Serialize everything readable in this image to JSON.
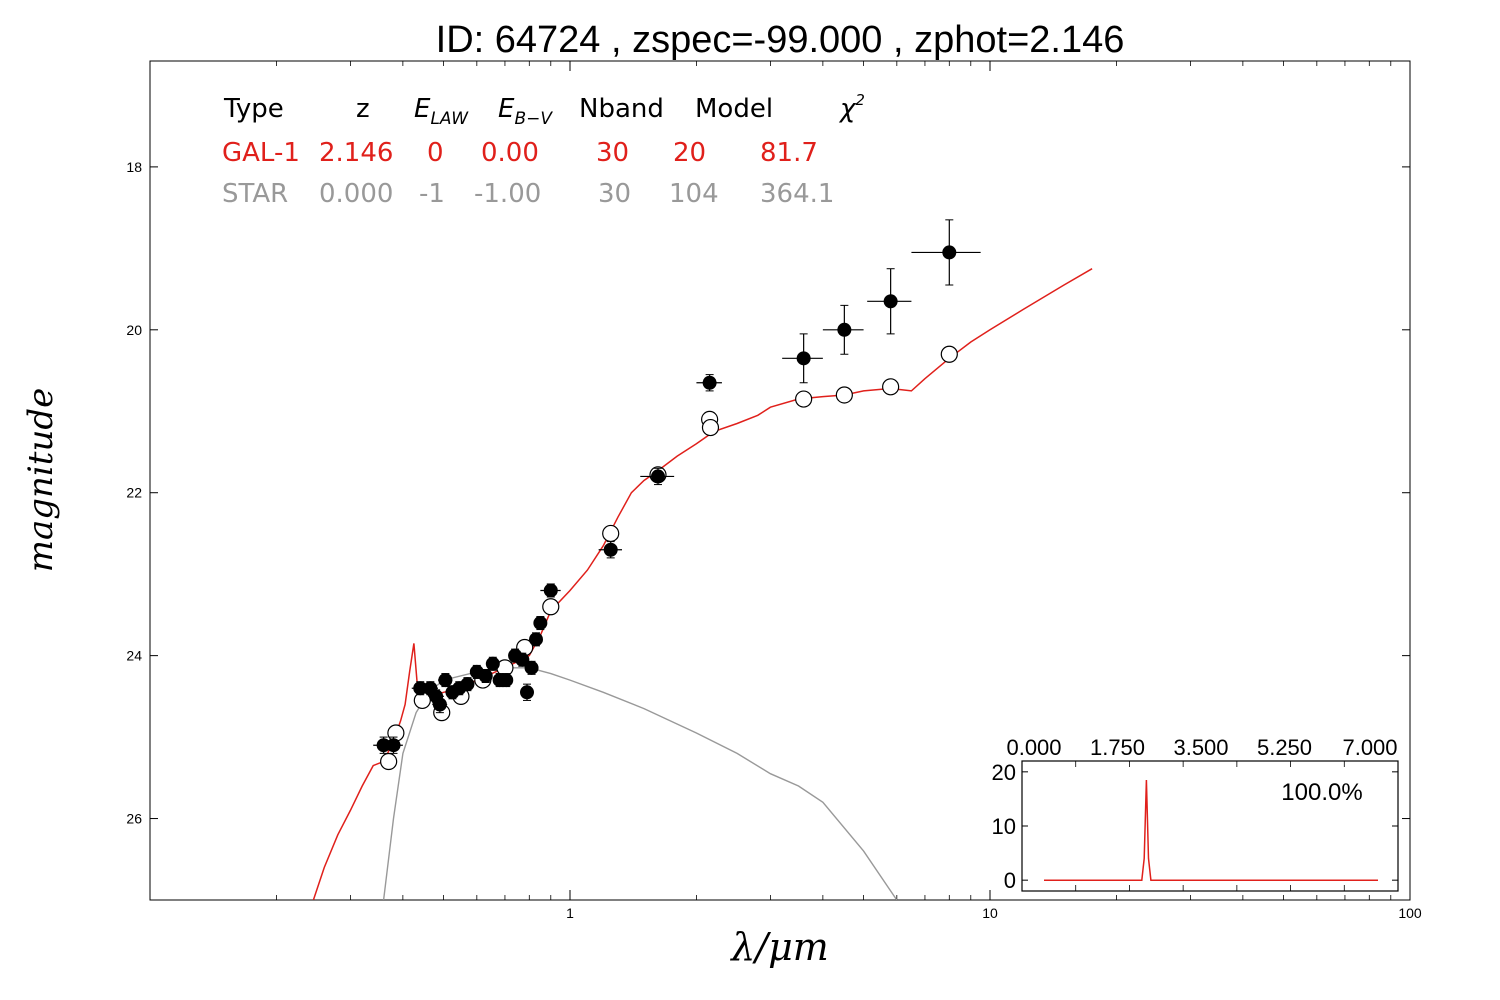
{
  "title": "ID:  64724 , zspec=-99.000 , zphot=2.146",
  "colors": {
    "galaxy": "#e0201b",
    "star": "#999999",
    "axis": "#000000",
    "marker_fill_obs": "#000000",
    "marker_fill_model": "#ffffff"
  },
  "fit_table": {
    "headers": [
      "Type",
      "z",
      "E_LAW",
      "E_B−V",
      "Nband",
      "Model",
      "χ²"
    ],
    "header_rendered": {
      "type": "Type",
      "z": "z",
      "elaw_base": "E",
      "elaw_sub": "LAW",
      "ebv_base": "E",
      "ebv_sub": "B−V",
      "nband": "Nband",
      "model": "Model",
      "chi_base": "χ",
      "chi_sup": "2"
    },
    "rows": [
      {
        "type": "GAL-1",
        "z": "2.146",
        "elaw": "0",
        "ebv": "0.00",
        "nband": "30",
        "model": "20",
        "chi2": "81.7",
        "color": "#e0201b"
      },
      {
        "type": "STAR",
        "z": "0.000",
        "elaw": "-1",
        "ebv": "-1.00",
        "nband": "30",
        "model": "104",
        "chi2": "364.1",
        "color": "#999999"
      }
    ]
  },
  "chart_data": [
    {
      "type": "scatter",
      "xlabel": "λ/μm",
      "ylabel": "magnitude",
      "xscale": "log",
      "xlim": [
        0.1,
        100
      ],
      "ylim": [
        27.0,
        16.7
      ],
      "y_inverted": true,
      "x_ticks": [
        1,
        10,
        100
      ],
      "x_tick_labels": [
        "1",
        "10",
        "100"
      ],
      "y_ticks": [
        18,
        20,
        22,
        24,
        26
      ],
      "y_tick_labels": [
        "18",
        "20",
        "22",
        "24",
        "26"
      ],
      "grid": false,
      "observed": {
        "name": "observed",
        "points": [
          {
            "x": 0.36,
            "y": 25.1,
            "yerr": 0.1,
            "xerr": 0.02
          },
          {
            "x": 0.38,
            "y": 25.1,
            "yerr": 0.1,
            "xerr": 0.02
          },
          {
            "x": 0.44,
            "y": 24.4,
            "yerr": 0.08,
            "xerr": 0.02
          },
          {
            "x": 0.465,
            "y": 24.4,
            "yerr": 0.08,
            "xerr": 0.02
          },
          {
            "x": 0.48,
            "y": 24.5,
            "yerr": 0.08,
            "xerr": 0.02
          },
          {
            "x": 0.49,
            "y": 24.6,
            "yerr": 0.1,
            "xerr": 0.02
          },
          {
            "x": 0.505,
            "y": 24.3,
            "yerr": 0.08,
            "xerr": 0.02
          },
          {
            "x": 0.525,
            "y": 24.45,
            "yerr": 0.08,
            "xerr": 0.02
          },
          {
            "x": 0.545,
            "y": 24.4,
            "yerr": 0.08,
            "xerr": 0.02
          },
          {
            "x": 0.57,
            "y": 24.35,
            "yerr": 0.08,
            "xerr": 0.02
          },
          {
            "x": 0.6,
            "y": 24.2,
            "yerr": 0.08,
            "xerr": 0.02
          },
          {
            "x": 0.63,
            "y": 24.25,
            "yerr": 0.08,
            "xerr": 0.02
          },
          {
            "x": 0.655,
            "y": 24.1,
            "yerr": 0.08,
            "xerr": 0.02
          },
          {
            "x": 0.68,
            "y": 24.3,
            "yerr": 0.08,
            "xerr": 0.02
          },
          {
            "x": 0.705,
            "y": 24.3,
            "yerr": 0.08,
            "xerr": 0.02
          },
          {
            "x": 0.74,
            "y": 24.0,
            "yerr": 0.08,
            "xerr": 0.02
          },
          {
            "x": 0.77,
            "y": 24.05,
            "yerr": 0.08,
            "xerr": 0.02
          },
          {
            "x": 0.79,
            "y": 24.45,
            "yerr": 0.1,
            "xerr": 0.02
          },
          {
            "x": 0.81,
            "y": 24.15,
            "yerr": 0.08,
            "xerr": 0.02
          },
          {
            "x": 0.83,
            "y": 23.8,
            "yerr": 0.08,
            "xerr": 0.03
          },
          {
            "x": 0.85,
            "y": 23.6,
            "yerr": 0.08,
            "xerr": 0.03
          },
          {
            "x": 0.9,
            "y": 23.2,
            "yerr": 0.08,
            "xerr": 0.05
          },
          {
            "x": 1.25,
            "y": 22.7,
            "yerr": 0.1,
            "xerr": 0.08
          },
          {
            "x": 1.62,
            "y": 21.8,
            "yerr": 0.1,
            "xerr": 0.15
          },
          {
            "x": 2.15,
            "y": 20.65,
            "yerr": 0.1,
            "xerr": 0.15
          },
          {
            "x": 3.6,
            "y": 20.35,
            "yerr": 0.3,
            "xerr": 0.4
          },
          {
            "x": 4.5,
            "y": 20.0,
            "yerr": 0.3,
            "xerr": 0.5
          },
          {
            "x": 5.8,
            "y": 19.65,
            "yerr": 0.4,
            "xerr": 0.7
          },
          {
            "x": 8.0,
            "y": 19.05,
            "yerr": 0.4,
            "xerr": 1.5
          }
        ]
      },
      "model_photometry": {
        "name": "model",
        "points": [
          {
            "x": 0.37,
            "y": 25.3
          },
          {
            "x": 0.385,
            "y": 24.95
          },
          {
            "x": 0.445,
            "y": 24.55
          },
          {
            "x": 0.495,
            "y": 24.7
          },
          {
            "x": 0.55,
            "y": 24.5
          },
          {
            "x": 0.62,
            "y": 24.3
          },
          {
            "x": 0.7,
            "y": 24.15
          },
          {
            "x": 0.78,
            "y": 23.9
          },
          {
            "x": 0.9,
            "y": 23.4
          },
          {
            "x": 1.25,
            "y": 22.5
          },
          {
            "x": 1.62,
            "y": 21.78
          },
          {
            "x": 2.15,
            "y": 21.1
          },
          {
            "x": 2.16,
            "y": 21.2
          },
          {
            "x": 3.6,
            "y": 20.85
          },
          {
            "x": 4.5,
            "y": 20.8
          },
          {
            "x": 5.8,
            "y": 20.7
          },
          {
            "x": 8.0,
            "y": 20.3
          }
        ]
      },
      "galaxy_sed": {
        "name": "GAL-1",
        "color": "#e0201b",
        "points": [
          [
            0.245,
            27.0
          ],
          [
            0.26,
            26.6
          ],
          [
            0.28,
            26.2
          ],
          [
            0.3,
            25.9
          ],
          [
            0.32,
            25.6
          ],
          [
            0.34,
            25.35
          ],
          [
            0.36,
            25.3
          ],
          [
            0.38,
            25.05
          ],
          [
            0.395,
            24.8
          ],
          [
            0.405,
            24.6
          ],
          [
            0.415,
            24.2
          ],
          [
            0.425,
            23.85
          ],
          [
            0.432,
            24.3
          ],
          [
            0.44,
            24.55
          ],
          [
            0.46,
            24.5
          ],
          [
            0.5,
            24.45
          ],
          [
            0.55,
            24.4
          ],
          [
            0.6,
            24.3
          ],
          [
            0.7,
            24.15
          ],
          [
            0.8,
            24.0
          ],
          [
            0.85,
            23.75
          ],
          [
            0.9,
            23.45
          ],
          [
            1.0,
            23.2
          ],
          [
            1.1,
            22.95
          ],
          [
            1.2,
            22.65
          ],
          [
            1.3,
            22.3
          ],
          [
            1.4,
            22.0
          ],
          [
            1.5,
            21.85
          ],
          [
            1.6,
            21.75
          ],
          [
            1.8,
            21.55
          ],
          [
            2.0,
            21.4
          ],
          [
            2.2,
            21.25
          ],
          [
            2.5,
            21.15
          ],
          [
            2.8,
            21.05
          ],
          [
            3.0,
            20.95
          ],
          [
            3.5,
            20.85
          ],
          [
            4.0,
            20.82
          ],
          [
            4.5,
            20.8
          ],
          [
            5.0,
            20.75
          ],
          [
            5.8,
            20.72
          ],
          [
            6.5,
            20.75
          ],
          [
            7.0,
            20.6
          ],
          [
            8.0,
            20.35
          ],
          [
            9.0,
            20.15
          ],
          [
            10.0,
            20.0
          ],
          [
            12.0,
            19.75
          ],
          [
            15.0,
            19.45
          ],
          [
            17.5,
            19.25
          ]
        ]
      },
      "star_sed": {
        "name": "STAR",
        "color": "#999999",
        "points": [
          [
            0.36,
            27.0
          ],
          [
            0.38,
            26.0
          ],
          [
            0.4,
            25.2
          ],
          [
            0.43,
            24.7
          ],
          [
            0.46,
            24.45
          ],
          [
            0.5,
            24.3
          ],
          [
            0.6,
            24.2
          ],
          [
            0.7,
            24.15
          ],
          [
            0.8,
            24.15
          ],
          [
            0.9,
            24.22
          ],
          [
            1.0,
            24.3
          ],
          [
            1.2,
            24.45
          ],
          [
            1.5,
            24.65
          ],
          [
            2.0,
            24.95
          ],
          [
            2.5,
            25.2
          ],
          [
            3.0,
            25.45
          ],
          [
            3.5,
            25.6
          ],
          [
            4.0,
            25.8
          ],
          [
            5.0,
            26.4
          ],
          [
            6.0,
            27.0
          ]
        ]
      }
    },
    {
      "type": "line",
      "name": "PDF(z) inset",
      "xlim": [
        0.0,
        7.0
      ],
      "ylim": [
        -2,
        22
      ],
      "x_ticks": [
        0.0,
        1.75,
        3.5,
        5.25,
        7.0
      ],
      "x_tick_labels": [
        "0.000",
        "1.750",
        "3.500",
        "5.250",
        "7.000"
      ],
      "y_ticks": [
        0,
        10,
        20
      ],
      "y_tick_labels": [
        "0",
        "10",
        "20"
      ],
      "annotation": "100.0%",
      "color": "#e0201b",
      "x": [
        0.0,
        2.05,
        2.1,
        2.146,
        2.19,
        2.24,
        7.0
      ],
      "y": [
        0,
        0,
        4,
        18.5,
        4,
        0,
        0
      ]
    }
  ]
}
